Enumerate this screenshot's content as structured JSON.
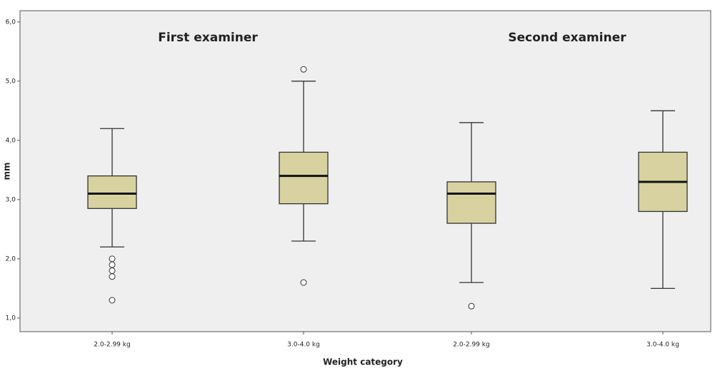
{
  "chart_data": {
    "type": "box",
    "annotations": [
      "First examiner",
      "Second examiner"
    ],
    "xlabel": "Weight category",
    "ylabel": "mm",
    "categories": [
      "2.0-2.99 kg",
      "3.0-4.0 kg",
      "2.0-2.99 kg",
      "3.0-4.0 kg"
    ],
    "boxes": [
      {
        "whisker_low": 2.2,
        "q1": 2.85,
        "median": 3.1,
        "q3": 3.4,
        "whisker_high": 4.2,
        "outliers": [
          2.0,
          1.9,
          1.8,
          1.7,
          1.3
        ]
      },
      {
        "whisker_low": 2.3,
        "q1": 2.93,
        "median": 3.4,
        "q3": 3.8,
        "whisker_high": 5.0,
        "outliers": [
          5.2,
          1.6
        ]
      },
      {
        "whisker_low": 1.6,
        "q1": 2.6,
        "median": 3.1,
        "q3": 3.3,
        "whisker_high": 4.3,
        "outliers": [
          1.2
        ]
      },
      {
        "whisker_low": 1.5,
        "q1": 2.8,
        "median": 3.3,
        "q3": 3.8,
        "whisker_high": 4.5,
        "outliers": []
      }
    ],
    "color": "#d8d2a0",
    "ylim": [
      0.77,
      6.19
    ],
    "yticks": [
      {
        "value": 1,
        "label": "1,0"
      },
      {
        "value": 2,
        "label": "2,0"
      },
      {
        "value": 3,
        "label": "3,0"
      },
      {
        "value": 4,
        "label": "4,0"
      },
      {
        "value": 5,
        "label": "5,0"
      },
      {
        "value": 6,
        "label": "6,0"
      }
    ]
  }
}
